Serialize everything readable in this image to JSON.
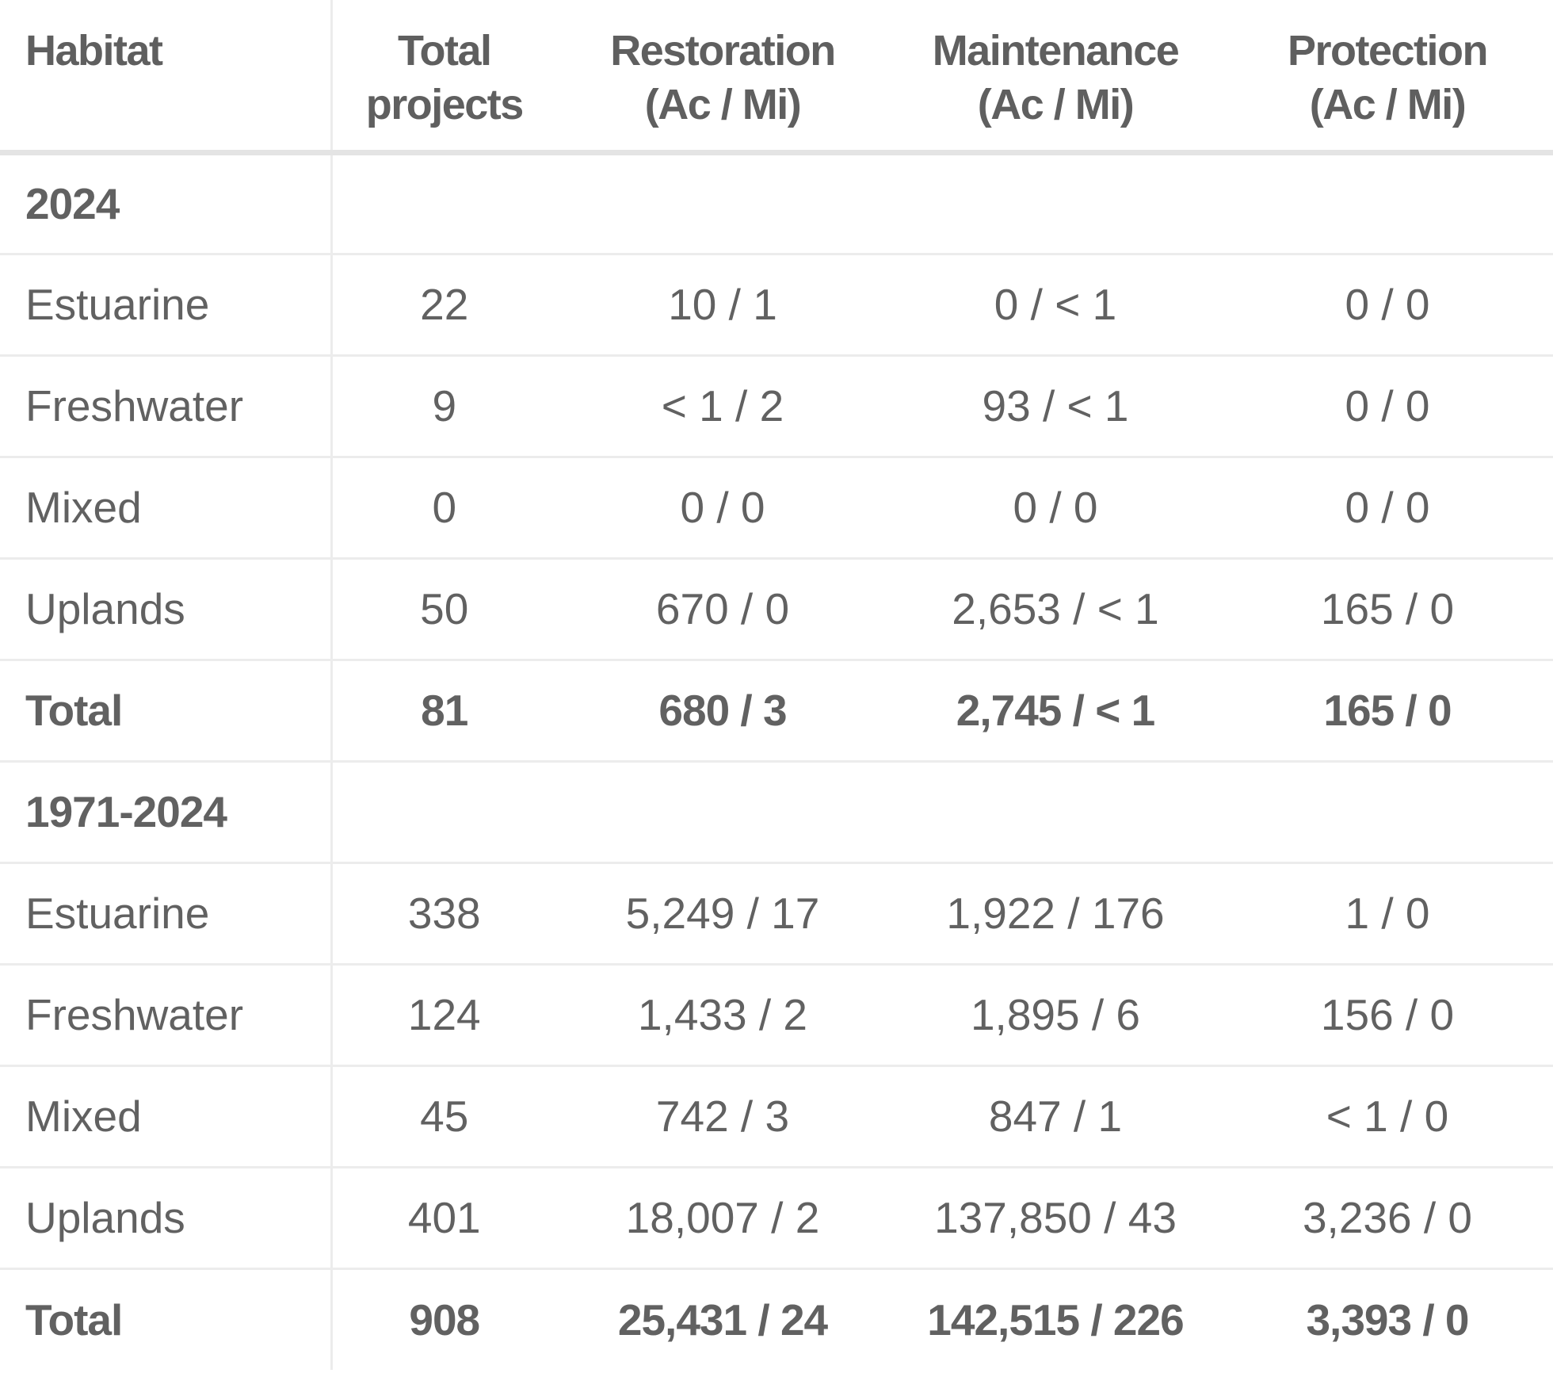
{
  "table": {
    "headers": [
      [
        "Habitat"
      ],
      [
        "Total",
        "projects"
      ],
      [
        "Restoration",
        "(Ac / Mi)"
      ],
      [
        "Maintenance",
        "(Ac / Mi)"
      ],
      [
        "Protection",
        "(Ac / Mi)"
      ]
    ],
    "sections": [
      {
        "label": "2024",
        "rows": [
          [
            "Estuarine",
            "22",
            "10 / 1",
            "0 / < 1",
            "0 / 0"
          ],
          [
            "Freshwater",
            "9",
            "< 1 / 2",
            "93 / < 1",
            "0 / 0"
          ],
          [
            "Mixed",
            "0",
            "0 / 0",
            "0 / 0",
            "0 / 0"
          ],
          [
            "Uplands",
            "50",
            "670 / 0",
            "2,653 / < 1",
            "165 / 0"
          ]
        ],
        "total": [
          "Total",
          "81",
          "680 / 3",
          "2,745 / < 1",
          "165 / 0"
        ]
      },
      {
        "label": "1971-2024",
        "rows": [
          [
            "Estuarine",
            "338",
            "5,249 / 17",
            "1,922 / 176",
            "1 / 0"
          ],
          [
            "Freshwater",
            "124",
            "1,433 / 2",
            "1,895 / 6",
            "156 / 0"
          ],
          [
            "Mixed",
            "45",
            "742 / 3",
            "847 / 1",
            "< 1 / 0"
          ],
          [
            "Uplands",
            "401",
            "18,007 / 2",
            "137,850 / 43",
            "3,236 / 0"
          ]
        ],
        "total": [
          "Total",
          "908",
          "25,431 / 24",
          "142,515 / 226",
          "3,393 / 0"
        ]
      }
    ]
  }
}
